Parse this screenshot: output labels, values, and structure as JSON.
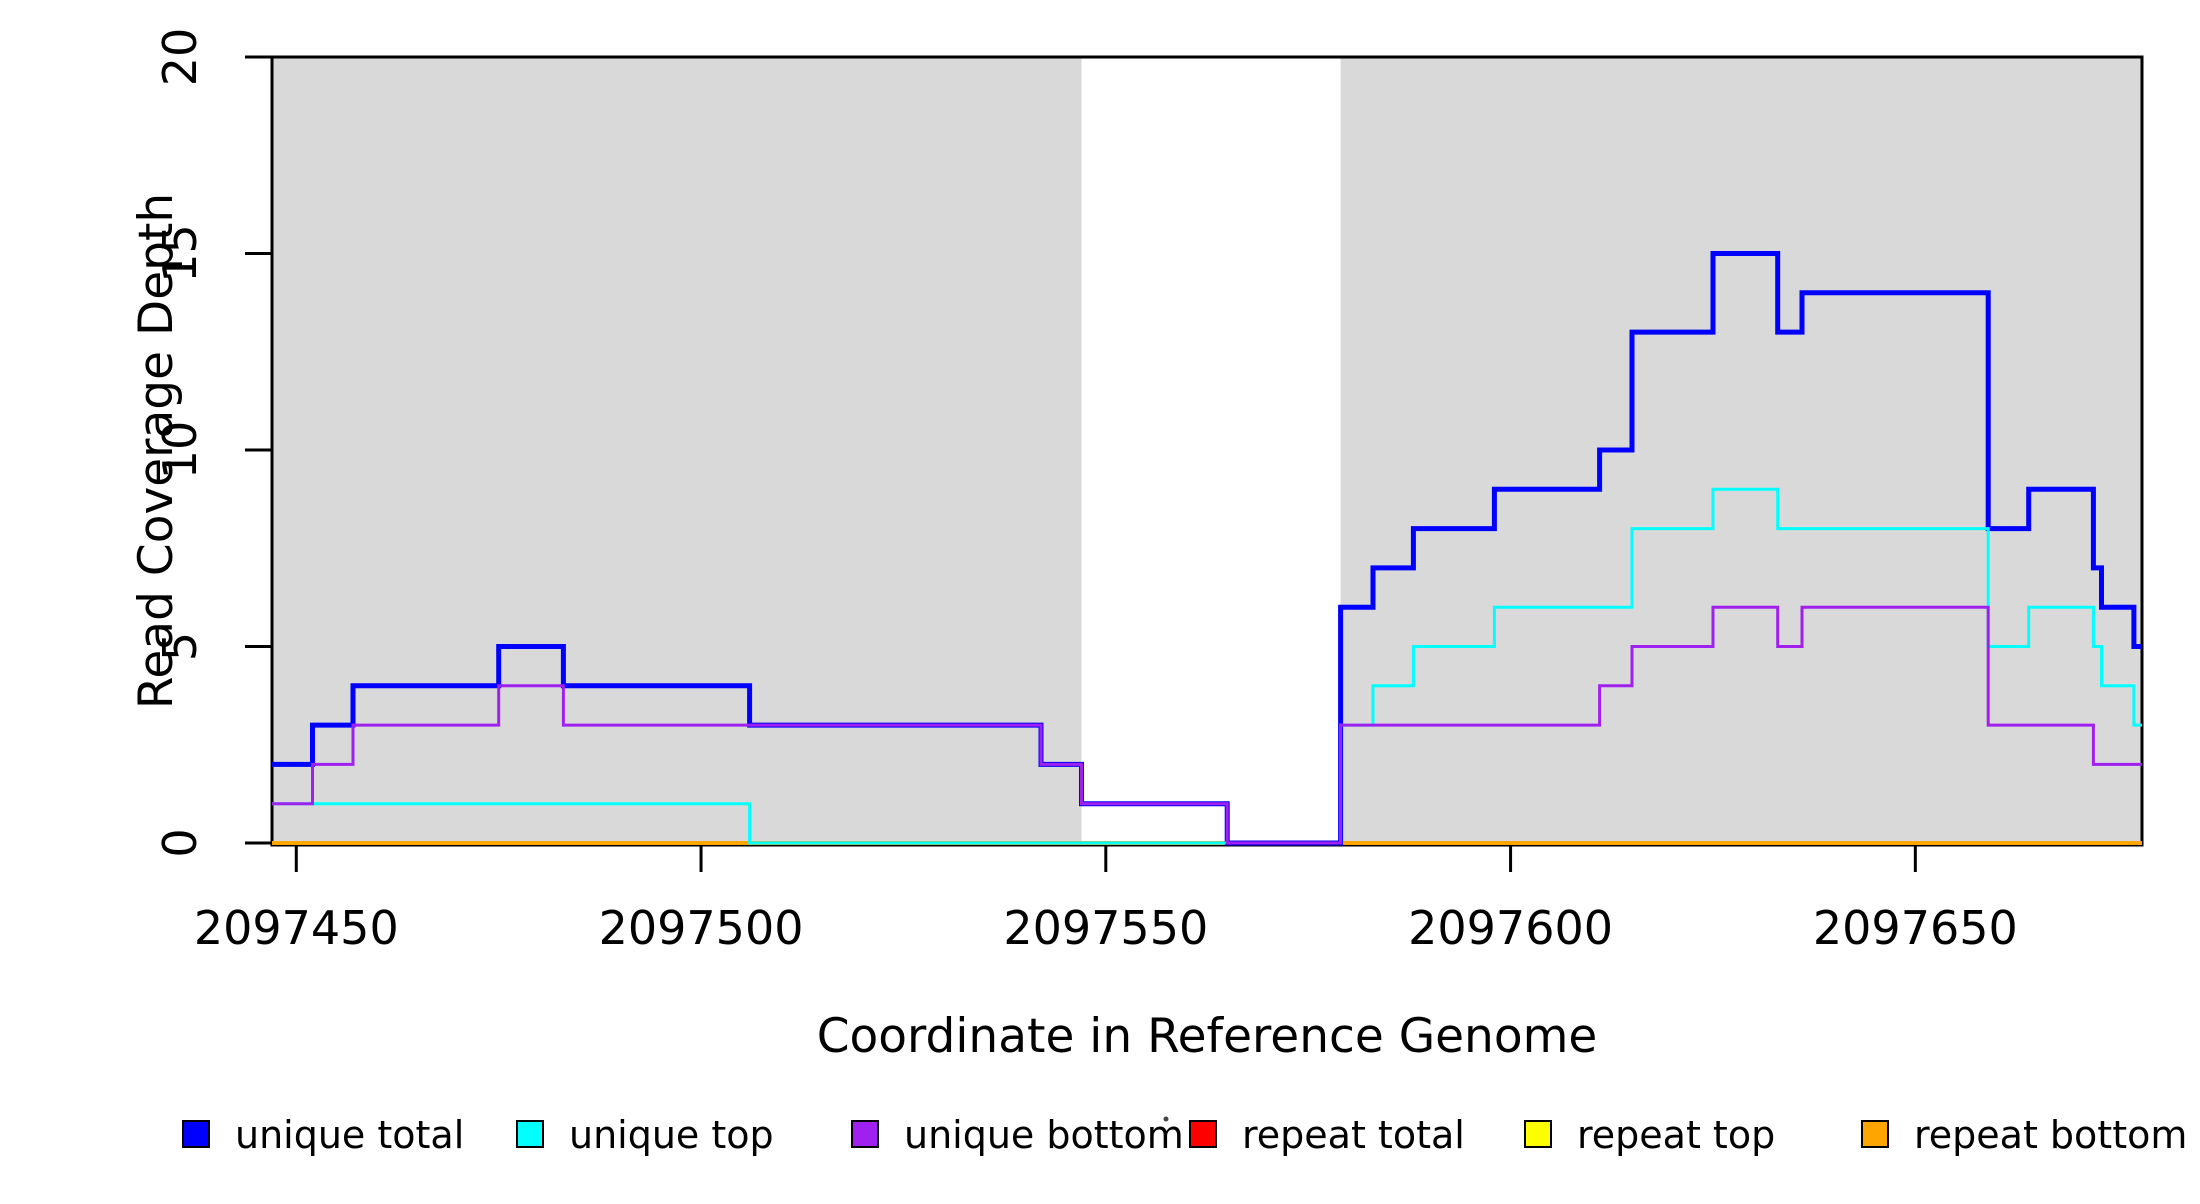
{
  "chart_data": {
    "type": "line",
    "subtype": "step",
    "title": "",
    "xlabel": "Coordinate in Reference Genome",
    "ylabel": "Read Coverage Depth",
    "xlim": [
      2097447,
      2097678
    ],
    "ylim": [
      0,
      20
    ],
    "x_ticks": [
      2097450,
      2097500,
      2097550,
      2097600,
      2097650
    ],
    "y_ticks": [
      0,
      5,
      10,
      15,
      20
    ],
    "grid": false,
    "legend_position": "bottom",
    "background_color": "#FFFFFF",
    "shaded_region_color": "#D9D9D9",
    "shaded_regions": [
      {
        "start": 2097447,
        "end": 2097547
      },
      {
        "start": 2097579,
        "end": 2097678
      }
    ],
    "x_end": 2097678,
    "draw_order": [
      "repeat total",
      "repeat top",
      "repeat bottom",
      "unique total",
      "unique top",
      "unique bottom"
    ],
    "series": [
      {
        "name": "unique total",
        "color": "#0000FF",
        "line_width": 5,
        "steps": [
          [
            2097447,
            2
          ],
          [
            2097452,
            3
          ],
          [
            2097457,
            4
          ],
          [
            2097475,
            5
          ],
          [
            2097483,
            4
          ],
          [
            2097506,
            3
          ],
          [
            2097542,
            2
          ],
          [
            2097547,
            1
          ],
          [
            2097565,
            0
          ],
          [
            2097579,
            6
          ],
          [
            2097583,
            7
          ],
          [
            2097588,
            8
          ],
          [
            2097598,
            9
          ],
          [
            2097611,
            10
          ],
          [
            2097615,
            13
          ],
          [
            2097625,
            15
          ],
          [
            2097633,
            13
          ],
          [
            2097636,
            14
          ],
          [
            2097659,
            8
          ],
          [
            2097664,
            9
          ],
          [
            2097672,
            7
          ],
          [
            2097673,
            6
          ],
          [
            2097677,
            5
          ]
        ]
      },
      {
        "name": "unique top",
        "color": "#00FFFF",
        "line_width": 3,
        "steps": [
          [
            2097447,
            1
          ],
          [
            2097506,
            0
          ],
          [
            2097579,
            3
          ],
          [
            2097583,
            4
          ],
          [
            2097588,
            5
          ],
          [
            2097598,
            6
          ],
          [
            2097615,
            8
          ],
          [
            2097625,
            9
          ],
          [
            2097633,
            8
          ],
          [
            2097659,
            5
          ],
          [
            2097664,
            6
          ],
          [
            2097672,
            5
          ],
          [
            2097673,
            4
          ],
          [
            2097677,
            3
          ]
        ]
      },
      {
        "name": "unique bottom",
        "color": "#A020F0",
        "line_width": 3,
        "steps": [
          [
            2097447,
            1
          ],
          [
            2097452,
            2
          ],
          [
            2097457,
            3
          ],
          [
            2097475,
            4
          ],
          [
            2097483,
            3
          ],
          [
            2097542,
            2
          ],
          [
            2097547,
            1
          ],
          [
            2097565,
            0
          ],
          [
            2097579,
            3
          ],
          [
            2097611,
            4
          ],
          [
            2097615,
            5
          ],
          [
            2097625,
            6
          ],
          [
            2097633,
            5
          ],
          [
            2097636,
            6
          ],
          [
            2097659,
            3
          ],
          [
            2097672,
            2
          ]
        ]
      },
      {
        "name": "repeat total",
        "color": "#FF0000",
        "line_width": 3,
        "steps": [
          [
            2097447,
            0
          ]
        ]
      },
      {
        "name": "repeat top",
        "color": "#FFFF00",
        "line_width": 3,
        "steps": [
          [
            2097447,
            0
          ]
        ]
      },
      {
        "name": "repeat bottom",
        "color": "#FFA500",
        "line_width": 4,
        "steps": [
          [
            2097447,
            0
          ]
        ]
      }
    ],
    "legend": [
      {
        "label": "unique total",
        "color": "#0000FF"
      },
      {
        "label": "unique top",
        "color": "#00FFFF"
      },
      {
        "label": "unique bottom",
        "color": "#A020F0"
      },
      {
        "label": "repeat total",
        "color": "#FF0000"
      },
      {
        "label": "repeat top",
        "color": "#FFFF00"
      },
      {
        "label": "repeat bottom",
        "color": "#FFA500"
      }
    ]
  }
}
